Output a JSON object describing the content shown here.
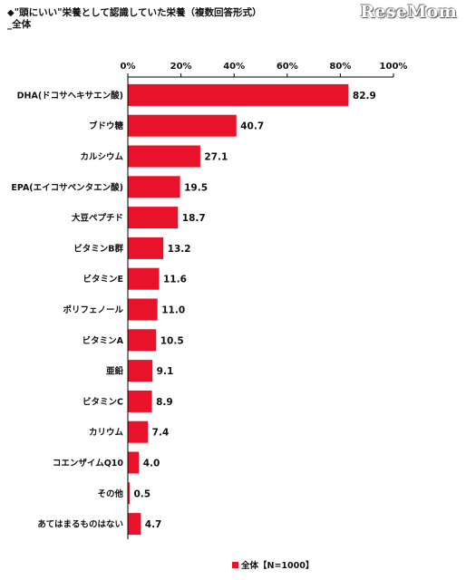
{
  "header": {
    "marker": "◆",
    "title": "\"頭にいい\"栄養として認識していた栄養（複数回答形式）",
    "subtitle": "_全体"
  },
  "watermark": {
    "text": "ReseMom"
  },
  "colors": {
    "bar": "#e8132b",
    "axis": "#000000",
    "grid": "#000000"
  },
  "chart_data": {
    "type": "bar",
    "orientation": "horizontal",
    "categories": [
      "DHA(ドコサヘキサエン酸)",
      "ブドウ糖",
      "カルシウム",
      "EPA(エイコサペンタエン酸)",
      "大豆ペプチド",
      "ビタミンB群",
      "ビタミンE",
      "ポリフェノール",
      "ビタミンA",
      "亜鉛",
      "ビタミンC",
      "カリウム",
      "コエンザイムQ10",
      "その他",
      "あてはまるものはない"
    ],
    "series": [
      {
        "name": "全体【N=1000】",
        "values": [
          82.9,
          40.7,
          27.1,
          19.5,
          18.7,
          13.2,
          11.6,
          11.0,
          10.5,
          9.1,
          8.9,
          7.4,
          4.0,
          0.5,
          4.7
        ],
        "labels": [
          "82.9",
          "40.7",
          "27.1",
          "19.5",
          "18.7",
          "13.2",
          "11.6",
          "11.0",
          "10.5",
          "9.1",
          "8.9",
          "7.4",
          "4.0",
          "0.5",
          "4.7"
        ]
      }
    ],
    "xlim": [
      0,
      100
    ],
    "xticks": [
      "0%",
      "20%",
      "40%",
      "60%",
      "80%",
      "100%"
    ],
    "legend_position": "bottom"
  }
}
